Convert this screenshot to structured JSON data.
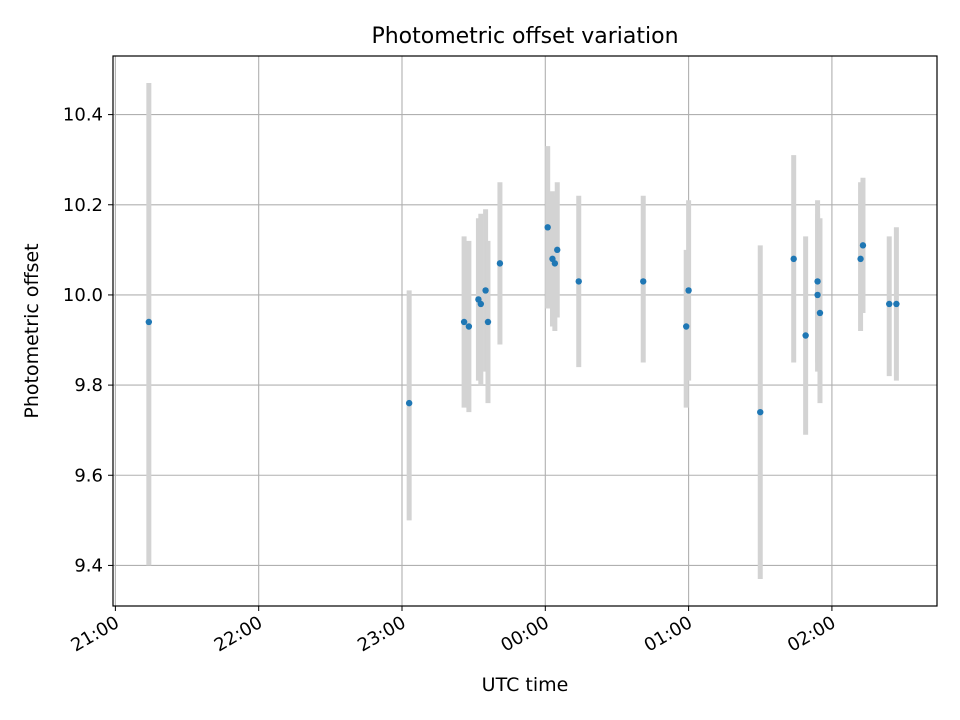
{
  "chart_data": {
    "type": "scatter",
    "title": "Photometric offset variation",
    "xlabel": "UTC time",
    "ylabel": "Photometric offset",
    "xlim": [
      "20:59",
      "02:44"
    ],
    "ylim": [
      9.31,
      10.53
    ],
    "x_ticks": [
      "21:00",
      "22:00",
      "23:00",
      "00:00",
      "01:00",
      "02:00"
    ],
    "y_ticks": [
      "9.4",
      "9.6",
      "9.8",
      "10.0",
      "10.2",
      "10.4"
    ],
    "grid": true,
    "colors": {
      "marker": "#1f77b4",
      "errorbar": "#d3d3d3",
      "grid": "#b0b0b0"
    },
    "points": [
      {
        "x": "21:14",
        "y": 9.94,
        "ylow": 9.4,
        "yhigh": 10.47
      },
      {
        "x": "23:03",
        "y": 9.76,
        "ylow": 9.5,
        "yhigh": 10.01
      },
      {
        "x": "23:26",
        "y": 9.94,
        "ylow": 9.75,
        "yhigh": 10.13
      },
      {
        "x": "23:28",
        "y": 9.93,
        "ylow": 9.74,
        "yhigh": 10.12
      },
      {
        "x": "23:32",
        "y": 9.99,
        "ylow": 9.81,
        "yhigh": 10.17
      },
      {
        "x": "23:33",
        "y": 9.98,
        "ylow": 9.8,
        "yhigh": 10.18
      },
      {
        "x": "23:35",
        "y": 10.01,
        "ylow": 9.83,
        "yhigh": 10.19
      },
      {
        "x": "23:36",
        "y": 9.94,
        "ylow": 9.76,
        "yhigh": 10.12
      },
      {
        "x": "23:41",
        "y": 10.07,
        "ylow": 9.89,
        "yhigh": 10.25
      },
      {
        "x": "00:01",
        "y": 10.15,
        "ylow": 9.97,
        "yhigh": 10.33
      },
      {
        "x": "00:03",
        "y": 10.08,
        "ylow": 9.93,
        "yhigh": 10.23
      },
      {
        "x": "00:04",
        "y": 10.07,
        "ylow": 9.92,
        "yhigh": 10.22
      },
      {
        "x": "00:05",
        "y": 10.1,
        "ylow": 9.95,
        "yhigh": 10.25
      },
      {
        "x": "00:14",
        "y": 10.03,
        "ylow": 9.84,
        "yhigh": 10.22
      },
      {
        "x": "00:41",
        "y": 10.03,
        "ylow": 9.85,
        "yhigh": 10.22
      },
      {
        "x": "00:59",
        "y": 9.93,
        "ylow": 9.75,
        "yhigh": 10.1
      },
      {
        "x": "01:00",
        "y": 10.01,
        "ylow": 9.81,
        "yhigh": 10.21
      },
      {
        "x": "01:30",
        "y": 9.74,
        "ylow": 9.37,
        "yhigh": 10.11
      },
      {
        "x": "01:44",
        "y": 10.08,
        "ylow": 9.85,
        "yhigh": 10.31
      },
      {
        "x": "01:49",
        "y": 9.91,
        "ylow": 9.69,
        "yhigh": 10.13
      },
      {
        "x": "01:54",
        "y": 10.03,
        "ylow": 9.85,
        "yhigh": 10.21
      },
      {
        "x": "01:54",
        "y": 10.0,
        "ylow": 9.83,
        "yhigh": 10.18
      },
      {
        "x": "01:55",
        "y": 9.96,
        "ylow": 9.76,
        "yhigh": 10.17
      },
      {
        "x": "02:12",
        "y": 10.08,
        "ylow": 9.92,
        "yhigh": 10.25
      },
      {
        "x": "02:13",
        "y": 10.11,
        "ylow": 9.96,
        "yhigh": 10.26
      },
      {
        "x": "02:24",
        "y": 9.98,
        "ylow": 9.82,
        "yhigh": 10.13
      },
      {
        "x": "02:27",
        "y": 9.98,
        "ylow": 9.81,
        "yhigh": 10.15
      }
    ]
  }
}
